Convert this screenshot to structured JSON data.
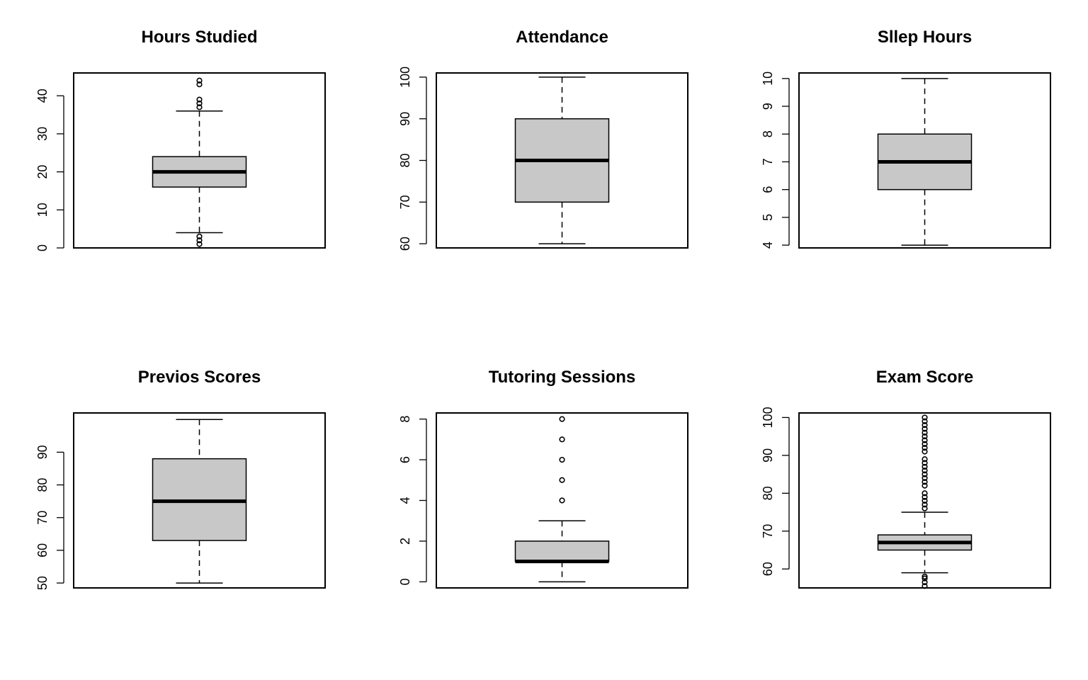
{
  "colors": {
    "box_fill": "#c8c8c8",
    "stroke": "#000000",
    "background": "#ffffff"
  },
  "chart_data": [
    {
      "type": "box",
      "title": "Hours Studied",
      "ylim": [
        0,
        46
      ],
      "yticks": [
        0,
        10,
        20,
        30,
        40
      ],
      "stats": {
        "lower_whisker": 4,
        "q1": 16,
        "median": 20,
        "q3": 24,
        "upper_whisker": 36
      },
      "outliers": [
        1,
        2,
        3,
        37,
        38,
        39,
        43,
        44
      ],
      "grid": false
    },
    {
      "type": "box",
      "title": "Attendance",
      "ylim": [
        59,
        101
      ],
      "yticks": [
        60,
        70,
        80,
        90,
        100
      ],
      "stats": {
        "lower_whisker": 60,
        "q1": 70,
        "median": 80,
        "q3": 90,
        "upper_whisker": 100
      },
      "outliers": [],
      "grid": false
    },
    {
      "type": "box",
      "title": "Sllep Hours",
      "ylim": [
        3.9,
        10.2
      ],
      "yticks": [
        4,
        5,
        6,
        7,
        8,
        9,
        10
      ],
      "stats": {
        "lower_whisker": 4,
        "q1": 6,
        "median": 7,
        "q3": 8,
        "upper_whisker": 10
      },
      "outliers": [],
      "grid": false
    },
    {
      "type": "box",
      "title": "Previos Scores",
      "ylim": [
        48.5,
        102
      ],
      "yticks": [
        50,
        60,
        70,
        80,
        90
      ],
      "stats": {
        "lower_whisker": 50,
        "q1": 63,
        "median": 75,
        "q3": 88,
        "upper_whisker": 100
      },
      "outliers": [],
      "grid": false
    },
    {
      "type": "box",
      "title": "Tutoring Sessions",
      "ylim": [
        -0.3,
        8.3
      ],
      "yticks": [
        0,
        2,
        4,
        6,
        8
      ],
      "stats": {
        "lower_whisker": 0,
        "q1": 1,
        "median": 1,
        "q3": 2,
        "upper_whisker": 3
      },
      "outliers": [
        4,
        5,
        6,
        7,
        8
      ],
      "grid": false
    },
    {
      "type": "box",
      "title": "Exam Score",
      "ylim": [
        55,
        101.2
      ],
      "yticks": [
        60,
        70,
        80,
        90,
        100
      ],
      "stats": {
        "lower_whisker": 59,
        "q1": 65,
        "median": 67,
        "q3": 69,
        "upper_whisker": 75
      },
      "outliers": [
        55.5,
        56.5,
        57.5,
        58,
        76,
        77,
        78,
        79,
        80,
        82,
        83,
        84,
        85,
        86,
        87,
        88,
        89,
        91,
        92,
        93,
        94,
        95,
        96,
        97,
        98,
        99,
        100
      ],
      "grid": false
    }
  ]
}
